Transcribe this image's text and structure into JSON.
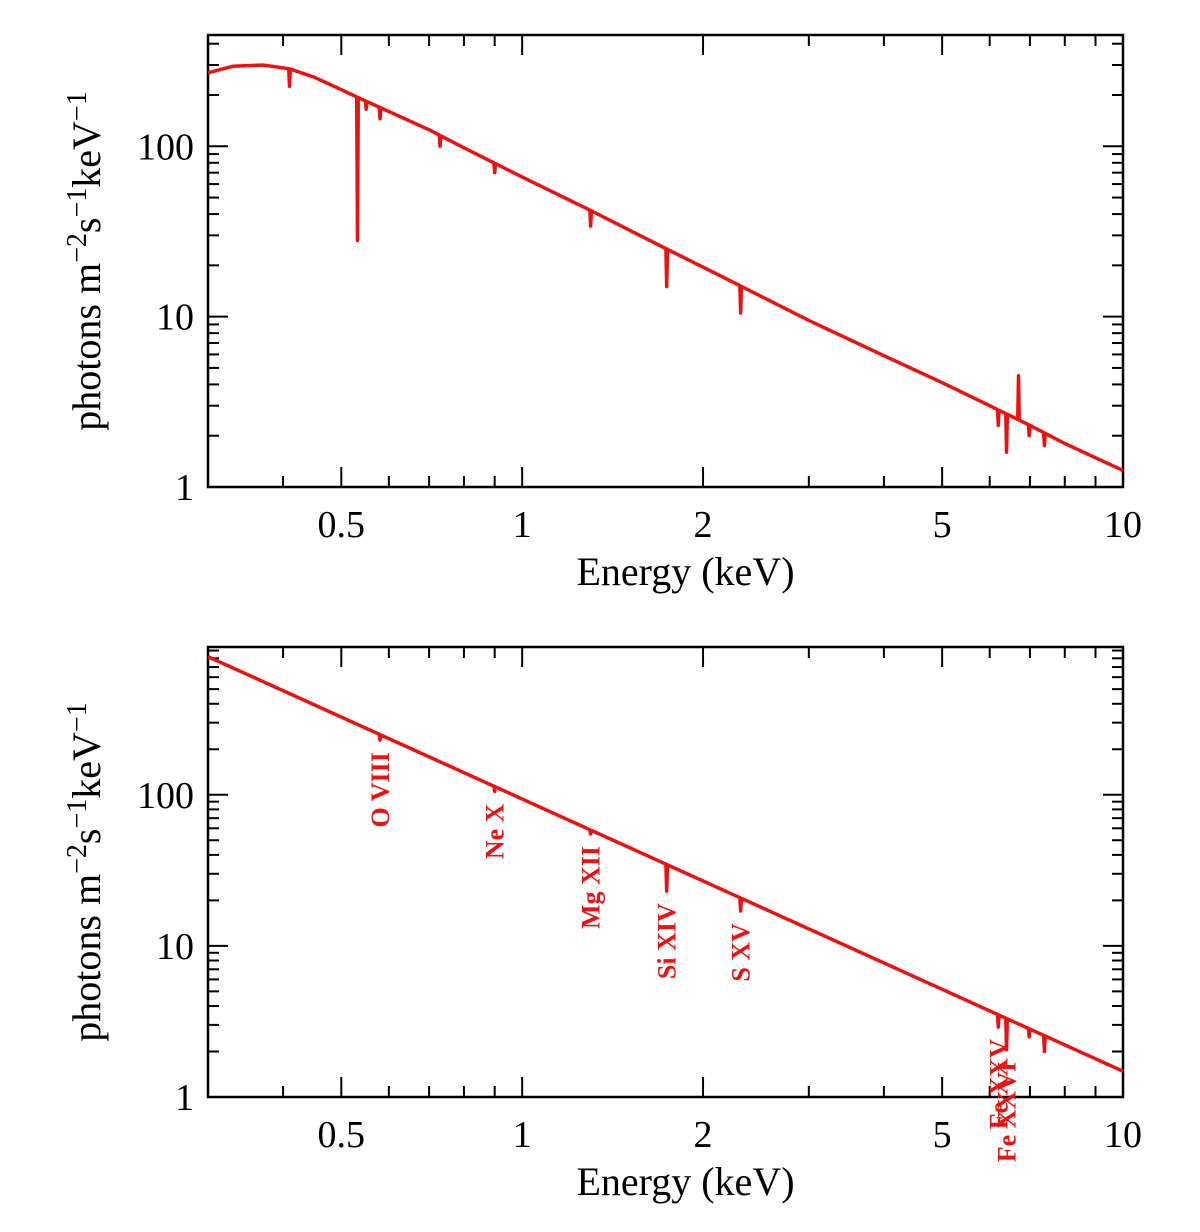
{
  "chart_data": [
    {
      "type": "line",
      "panel": "top",
      "xscale": "log",
      "yscale": "log",
      "xlim": [
        0.3,
        10
      ],
      "ylim": [
        1,
        450
      ],
      "xlabel": "Energy (keV)",
      "ylabel": {
        "base": "photons m",
        "exp1": "−2",
        "mid": "s",
        "exp2": "−1",
        "mid2": "keV",
        "exp3": "−1"
      },
      "xticks": [
        {
          "value": 0.5,
          "label": "0.5"
        },
        {
          "value": 1,
          "label": "1"
        },
        {
          "value": 2,
          "label": "2"
        },
        {
          "value": 5,
          "label": "5"
        },
        {
          "value": 10,
          "label": "10"
        }
      ],
      "yticks": [
        {
          "value": 1,
          "label": "1"
        },
        {
          "value": 10,
          "label": "10"
        },
        {
          "value": 100,
          "label": "100"
        }
      ],
      "line_color": "#ee1111",
      "continuum": {
        "x": [
          0.3,
          0.33,
          0.37,
          0.41,
          0.45,
          0.5,
          0.53,
          0.6,
          0.7,
          0.8,
          1.0,
          1.3,
          1.7,
          2.2,
          3.0,
          4.0,
          5.0,
          6.0,
          7.0,
          8.0,
          10.0
        ],
        "y": [
          270,
          295,
          300,
          285,
          255,
          215,
          195,
          160,
          125,
          98,
          66,
          42,
          26,
          16.5,
          9.5,
          5.9,
          4.1,
          3.0,
          2.3,
          1.8,
          1.25
        ]
      },
      "absorption_lines": [
        {
          "x": 0.41,
          "y": 225
        },
        {
          "x": 0.532,
          "y": 28
        },
        {
          "x": 0.55,
          "y": 165
        },
        {
          "x": 0.58,
          "y": 145
        },
        {
          "x": 0.73,
          "y": 100
        },
        {
          "x": 0.9,
          "y": 70
        },
        {
          "x": 1.3,
          "y": 34
        },
        {
          "x": 1.74,
          "y": 15
        },
        {
          "x": 2.31,
          "y": 10.5
        },
        {
          "x": 6.2,
          "y": 2.3
        },
        {
          "x": 6.4,
          "y": 1.6
        },
        {
          "x": 6.98,
          "y": 2.0
        },
        {
          "x": 7.4,
          "y": 1.75
        }
      ],
      "emission_lines": [
        {
          "x": 6.7,
          "y": 4.5
        }
      ]
    },
    {
      "type": "line",
      "panel": "bottom",
      "xscale": "log",
      "yscale": "log",
      "xlim": [
        0.3,
        10
      ],
      "ylim": [
        1,
        950
      ],
      "xlabel": "Energy (keV)",
      "ylabel": {
        "base": "photons m",
        "exp1": "−2",
        "mid": "s",
        "exp2": "−1",
        "mid2": "keV",
        "exp3": "−1"
      },
      "xticks": [
        {
          "value": 0.5,
          "label": "0.5"
        },
        {
          "value": 1,
          "label": "1"
        },
        {
          "value": 2,
          "label": "2"
        },
        {
          "value": 5,
          "label": "5"
        },
        {
          "value": 10,
          "label": "10"
        }
      ],
      "yticks": [
        {
          "value": 1,
          "label": "1"
        },
        {
          "value": 10,
          "label": "10"
        },
        {
          "value": 100,
          "label": "100"
        }
      ],
      "line_color": "#ee1111",
      "continuum": {
        "x": [
          0.3,
          10.0
        ],
        "y": [
          820,
          1.48
        ]
      },
      "absorption_lines": [
        {
          "x": 0.58,
          "y": 230,
          "label": "O VIII"
        },
        {
          "x": 0.9,
          "y": 105,
          "label": "Ne X"
        },
        {
          "x": 1.3,
          "y": 55,
          "label": "Mg XII"
        },
        {
          "x": 1.74,
          "y": 23,
          "label": "Si XIV"
        },
        {
          "x": 2.31,
          "y": 17,
          "label": "S XV"
        },
        {
          "x": 6.2,
          "y": 2.9,
          "label": "Fe XXV"
        },
        {
          "x": 6.4,
          "y": 2.05,
          "label": "Fe XXVI"
        },
        {
          "x": 6.98,
          "y": 2.5
        },
        {
          "x": 7.4,
          "y": 2.0
        }
      ]
    }
  ]
}
